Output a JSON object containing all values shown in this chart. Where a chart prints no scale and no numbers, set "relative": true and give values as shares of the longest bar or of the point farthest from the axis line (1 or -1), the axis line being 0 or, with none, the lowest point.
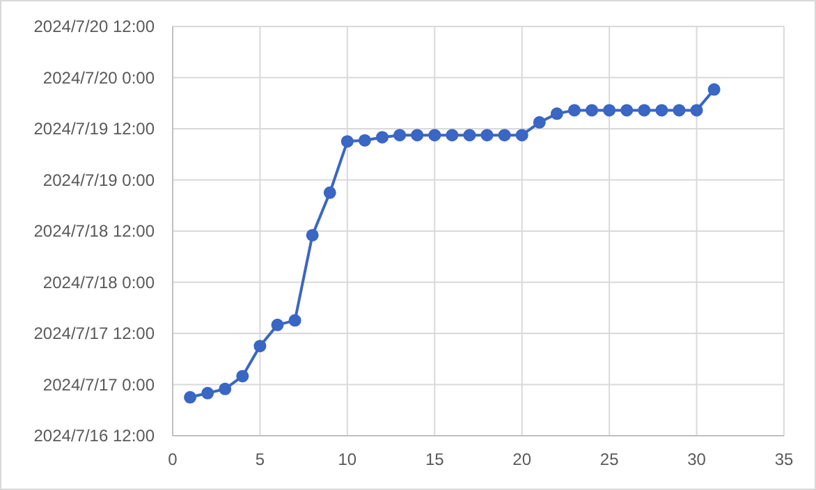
{
  "chart_data": {
    "type": "line",
    "relative": true,
    "x": [
      1,
      2,
      3,
      4,
      5,
      6,
      7,
      8,
      9,
      10,
      11,
      12,
      13,
      14,
      15,
      16,
      17,
      18,
      19,
      20,
      21,
      22,
      23,
      24,
      25,
      26,
      27,
      28,
      29,
      30,
      31
    ],
    "series": [
      {
        "color": "#3a66c4",
        "values": [
          0.111,
          0.123,
          0.135,
          0.172,
          0.259,
          0.32,
          0.333,
          0.579,
          0.702,
          0.85,
          0.853,
          0.862,
          0.868,
          0.868,
          0.868,
          0.868,
          0.868,
          0.868,
          0.868,
          0.868,
          0.905,
          0.93,
          0.94,
          0.94,
          0.94,
          0.94,
          0.94,
          0.94,
          0.94,
          0.94,
          1
        ]
      }
    ],
    "xlim": [
      0,
      35
    ],
    "xticks": [
      0,
      5,
      10,
      15,
      20,
      25,
      30,
      35
    ],
    "annotations": [
      "2024/7/20 12:00",
      "2024/7/20 0:00",
      "2024/7/19 12:00",
      "2024/7/19 0:00",
      "2024/7/18 12:00",
      "2024/7/18 0:00",
      "2024/7/17 12:00",
      "2024/7/17 0:00",
      "2024/7/16 12:00"
    ],
    "grid": true,
    "marker": "circle",
    "line_style": "solid"
  }
}
